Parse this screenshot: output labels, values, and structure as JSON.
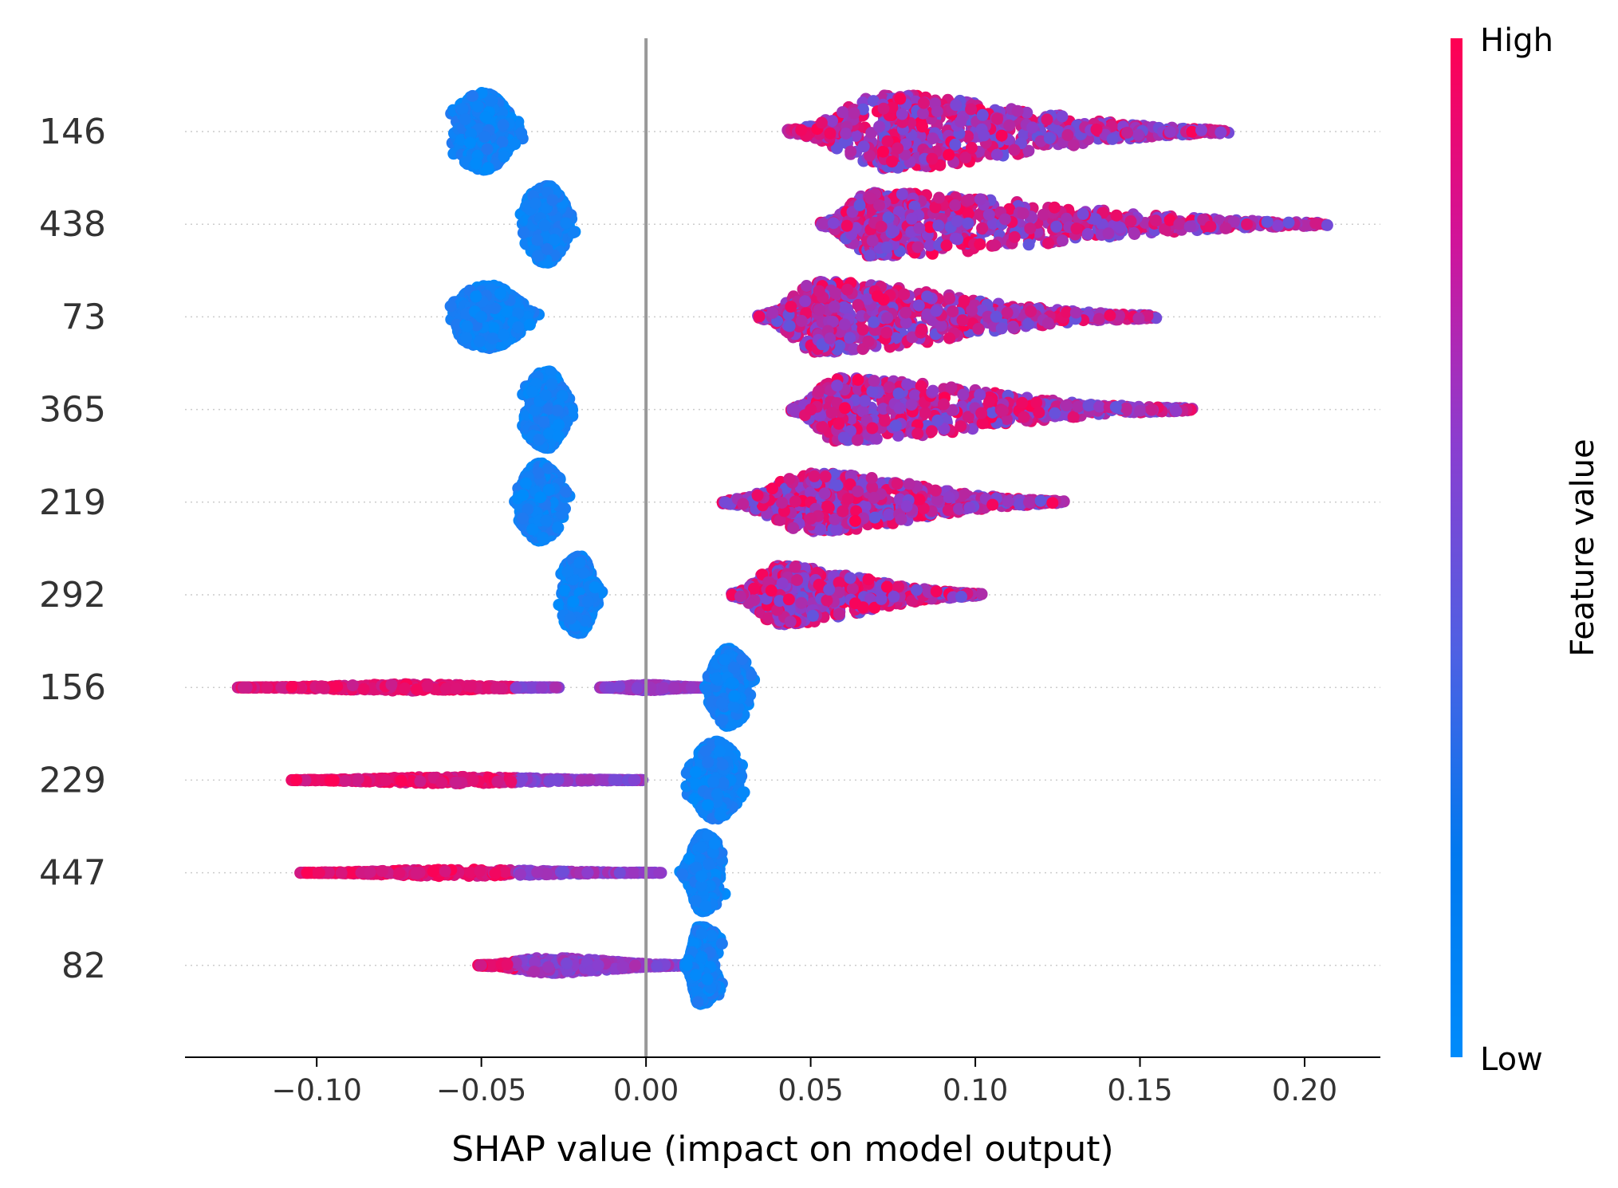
{
  "chart_data": {
    "type": "scatter",
    "subtype": "shap-beeswarm-summary",
    "title": "",
    "xlabel": "SHAP value (impact on model output)",
    "ylabel": "",
    "xlim": [
      -0.14,
      0.223
    ],
    "xticks": [
      -0.1,
      -0.05,
      0.0,
      0.05,
      0.1,
      0.15,
      0.2
    ],
    "xtick_labels": [
      "−0.10",
      "−0.05",
      "0.00",
      "0.05",
      "0.10",
      "0.15",
      "0.20"
    ],
    "zero_line": 0.0,
    "grid": false,
    "colorbar": {
      "title": "Feature value",
      "high_label": "High",
      "low_label": "Low",
      "low_color": "#008bfb",
      "high_color": "#ff0052"
    },
    "features": [
      {
        "name": "146",
        "clusters": [
          {
            "min": -0.072,
            "max": -0.033,
            "center": -0.049,
            "halfwidth": 0.42,
            "color": "low",
            "skew": 0
          },
          {
            "min": 0.043,
            "max": 0.177,
            "center": 0.072,
            "halfwidth": 0.4,
            "color": "mixed-high",
            "skew": 1
          }
        ]
      },
      {
        "name": "438",
        "clusters": [
          {
            "min": -0.047,
            "max": -0.018,
            "center": -0.03,
            "halfwidth": 0.42,
            "color": "low",
            "skew": 0
          },
          {
            "min": 0.053,
            "max": 0.207,
            "center": 0.068,
            "halfwidth": 0.34,
            "color": "mixed-high",
            "skew": 1
          }
        ]
      },
      {
        "name": "73",
        "clusters": [
          {
            "min": -0.076,
            "max": -0.028,
            "center": -0.047,
            "halfwidth": 0.34,
            "color": "low",
            "skew": 0
          },
          {
            "min": 0.034,
            "max": 0.155,
            "center": 0.052,
            "halfwidth": 0.38,
            "color": "mixed-high",
            "skew": 1
          }
        ]
      },
      {
        "name": "365",
        "clusters": [
          {
            "min": -0.047,
            "max": -0.019,
            "center": -0.03,
            "halfwidth": 0.42,
            "color": "low",
            "skew": 0
          },
          {
            "min": 0.044,
            "max": 0.166,
            "center": 0.058,
            "halfwidth": 0.34,
            "color": "mixed-high",
            "skew": 1
          }
        ]
      },
      {
        "name": "219",
        "clusters": [
          {
            "min": -0.046,
            "max": -0.017,
            "center": -0.032,
            "halfwidth": 0.42,
            "color": "low",
            "skew": 0
          },
          {
            "min": 0.023,
            "max": 0.127,
            "center": 0.05,
            "halfwidth": 0.32,
            "color": "mixed-high",
            "skew": 1
          }
        ]
      },
      {
        "name": "292",
        "clusters": [
          {
            "min": -0.035,
            "max": -0.012,
            "center": -0.02,
            "halfwidth": 0.42,
            "color": "low",
            "skew": 0
          },
          {
            "min": 0.026,
            "max": 0.102,
            "center": 0.04,
            "halfwidth": 0.32,
            "color": "mixed-high",
            "skew": 1
          }
        ]
      },
      {
        "name": "156",
        "clusters": [
          {
            "min": -0.124,
            "max": -0.026,
            "center": -0.07,
            "halfwidth": 0.06,
            "color": "high",
            "skew": 2
          },
          {
            "min": -0.014,
            "max": 0.018,
            "center": 0.0,
            "halfwidth": 0.05,
            "color": "mid",
            "skew": 2
          },
          {
            "min": 0.014,
            "max": 0.04,
            "center": 0.025,
            "halfwidth": 0.42,
            "color": "low",
            "skew": 0
          }
        ]
      },
      {
        "name": "229",
        "clusters": [
          {
            "min": -0.108,
            "max": -0.001,
            "center": -0.06,
            "halfwidth": 0.06,
            "color": "high",
            "skew": 2
          },
          {
            "min": 0.006,
            "max": 0.038,
            "center": 0.021,
            "halfwidth": 0.42,
            "color": "low",
            "skew": 0
          }
        ]
      },
      {
        "name": "447",
        "clusters": [
          {
            "min": -0.105,
            "max": 0.005,
            "center": -0.06,
            "halfwidth": 0.06,
            "color": "high",
            "skew": 2
          },
          {
            "min": 0.01,
            "max": 0.034,
            "center": 0.017,
            "halfwidth": 0.42,
            "color": "low",
            "skew": 0
          }
        ]
      },
      {
        "name": "82",
        "clusters": [
          {
            "min": -0.051,
            "max": 0.013,
            "center": -0.03,
            "halfwidth": 0.14,
            "color": "high",
            "skew": 2
          },
          {
            "min": 0.012,
            "max": 0.038,
            "center": 0.016,
            "halfwidth": 0.42,
            "color": "low",
            "skew": 0
          }
        ]
      }
    ]
  }
}
